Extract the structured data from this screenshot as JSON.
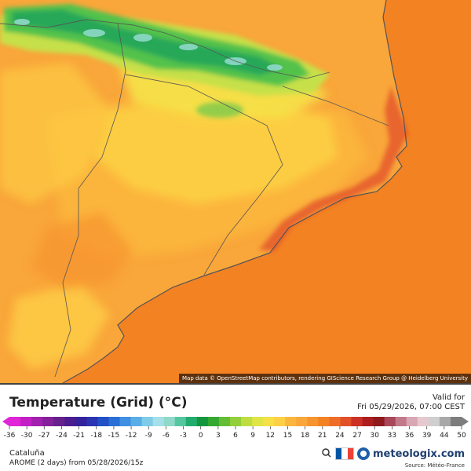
{
  "map": {
    "attribution": "Map data © OpenStreetMap contributors, rendering GIScience Research Group @ Heidelberg University",
    "colors": {
      "sea": "#f38223",
      "land_base": "#f9a63a",
      "inland_hot": "#f6942e",
      "inland_warm": "#fbb63d",
      "interior_yellow": "#fdd045",
      "foothill_yellow": "#f6e048",
      "mountain_lime": "#c6e04a",
      "mountain_green": "#53c24c",
      "mountain_dark_green": "#1fa35a",
      "mountain_peak": "#8fd9c8",
      "coast_red": "#e2502a",
      "border_line": "#555555"
    }
  },
  "legend": {
    "title": "Temperature (Grid) (°C)",
    "valid_label": "Valid for",
    "valid_time": "Fri 05/29/2026, 07:00 CEST",
    "tick_labels": [
      "-36",
      "-30",
      "-27",
      "-24",
      "-21",
      "-18",
      "-15",
      "-12",
      "-9",
      "-6",
      "-3",
      "0",
      "3",
      "6",
      "9",
      "12",
      "15",
      "18",
      "21",
      "24",
      "27",
      "30",
      "33",
      "36",
      "39",
      "44",
      "50"
    ],
    "colors": [
      "#e024d8",
      "#c21fc4",
      "#a31fae",
      "#84209c",
      "#66218d",
      "#4b1d8f",
      "#35229d",
      "#2b35b2",
      "#2250c6",
      "#2a6fd6",
      "#3f8fe2",
      "#5aaee6",
      "#7fcbe8",
      "#a5dfe9",
      "#8fd9c8",
      "#55c6a0",
      "#22ad6f",
      "#14963e",
      "#33a833",
      "#64bd34",
      "#93cf3a",
      "#bddd40",
      "#dfe545",
      "#f6e048",
      "#fdd045",
      "#fbb63d",
      "#f9a63a",
      "#f6942e",
      "#f38223",
      "#ee6d27",
      "#e2502a",
      "#cc3125",
      "#ad1f1f",
      "#8e1a1d",
      "#a8485a",
      "#c27a8b",
      "#d8a7b3",
      "#e6c9cf",
      "#cfcfcf",
      "#a8a8a8",
      "#7d7d7d"
    ]
  },
  "footer": {
    "region": "Cataluña",
    "model_run": "AROME (2 days)  from  05/28/2026/15z",
    "brand": "meteologix.com",
    "source": "Source: Météo-France",
    "icons": [
      "hd-icon",
      "france-flag-icon",
      "meteologix-logo-icon"
    ],
    "flag_colors": [
      "#0055a4",
      "#ffffff",
      "#ef4135"
    ]
  }
}
